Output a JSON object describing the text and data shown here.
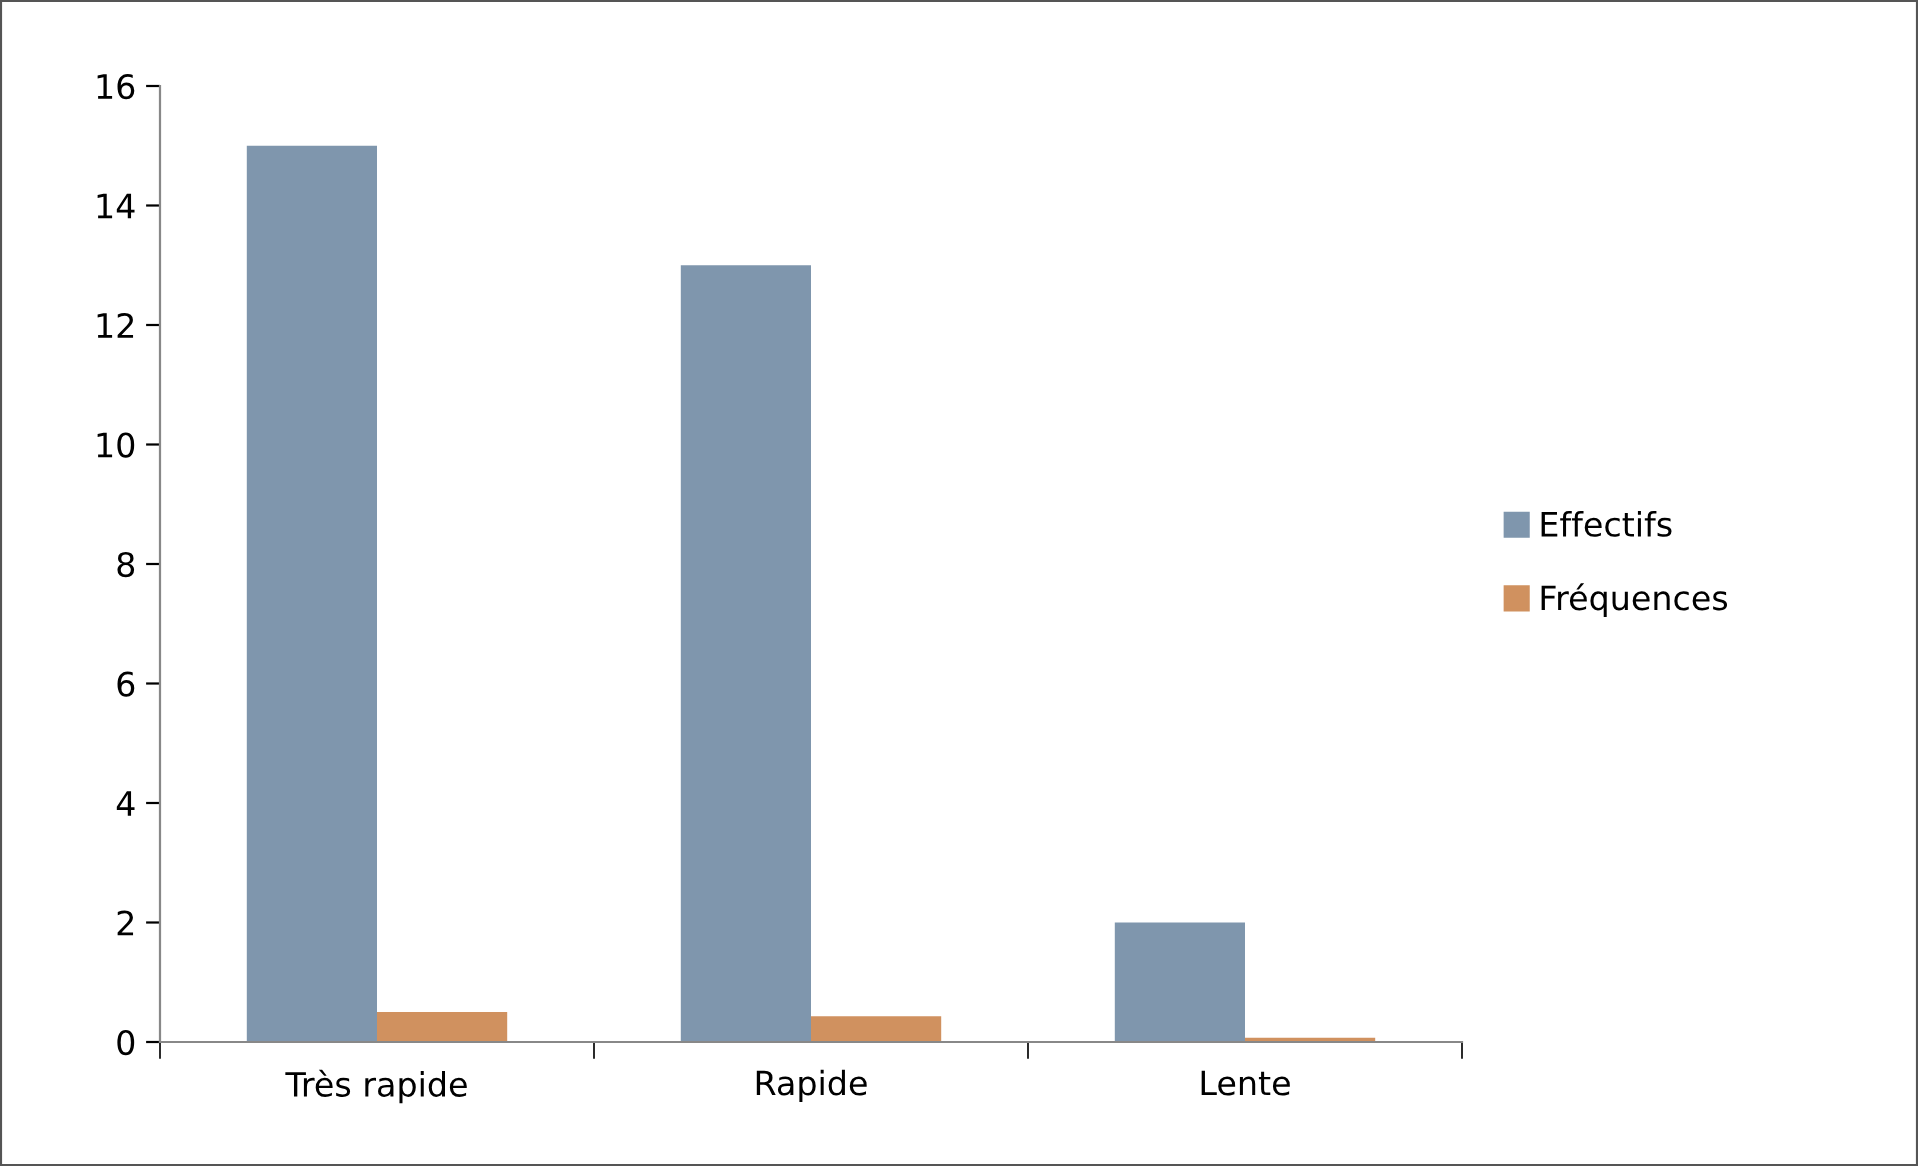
{
  "chart_data": {
    "type": "bar",
    "categories": [
      "Très rapide",
      "Rapide",
      "Lente"
    ],
    "series": [
      {
        "name": "Effectifs",
        "color": "#7f96ad",
        "values": [
          15,
          13,
          2
        ]
      },
      {
        "name": "Fréquences",
        "color": "#d0915f",
        "values": [
          0.5,
          0.43,
          0.07
        ]
      }
    ],
    "ylim": [
      0,
      16
    ],
    "yticks": [
      0,
      2,
      4,
      6,
      8,
      10,
      12,
      14,
      16
    ],
    "grid": false,
    "legend": "right"
  }
}
